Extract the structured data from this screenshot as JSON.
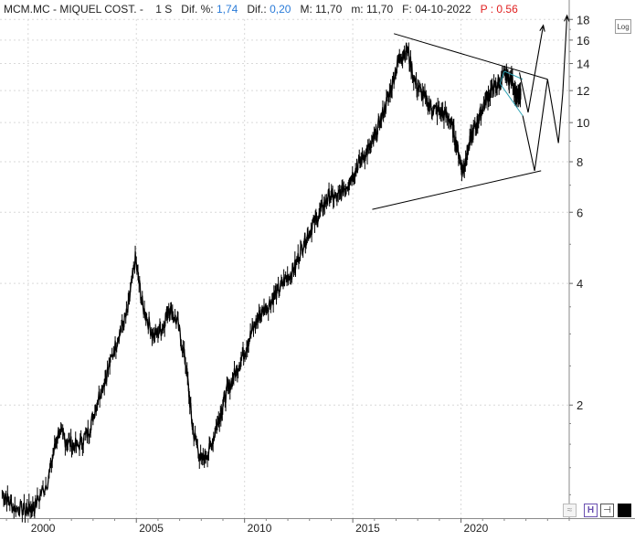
{
  "header": {
    "symbol": "MCM.MC - MIQUEL COST. -",
    "period": "1 S",
    "pct_label": "Dif. %:",
    "pct_value": "1,74",
    "diff_label": "Dif.:",
    "diff_value": "0,20",
    "max_label": "M:",
    "max_value": "11,70",
    "min_label": "m:",
    "min_value": "11,70",
    "date_label": "F:",
    "date_value": "04-10-2022",
    "per_label": "P :",
    "per_value": "0.56"
  },
  "controls": {
    "log_label": "Log"
  },
  "colors": {
    "price": "#000000",
    "grid": "#d9d9d9",
    "channel": "#2fa3b5",
    "value_blue": "#2a7bd8",
    "value_red": "#e02020"
  },
  "chart_data": {
    "type": "line",
    "y_scale": "log",
    "ylim": [
      1.05,
      18.5
    ],
    "xlim": [
      1998.7,
      2025.0
    ],
    "x_ticks": [
      2000,
      2005,
      2010,
      2015,
      2020
    ],
    "y_ticks": [
      2,
      4,
      6,
      8,
      10,
      12,
      14,
      16,
      18
    ],
    "grid": true,
    "series": [
      {
        "x": [
          1998.8,
          1999.3,
          1999.9,
          2000.3,
          2000.9,
          2001.4,
          2001.8,
          2002.3,
          2002.8,
          2003.2,
          2003.7,
          2004.2,
          2004.6,
          2004.95,
          2005.3,
          2005.8,
          2006.2,
          2006.5,
          2006.9,
          2007.3,
          2007.6,
          2008.0,
          2008.4,
          2008.8,
          2009.1,
          2009.5,
          2009.9,
          2010.3,
          2010.7,
          2011.1,
          2011.5,
          2011.9,
          2012.3,
          2012.7,
          2013.1,
          2013.5,
          2013.9,
          2014.3,
          2014.7,
          2015.1,
          2015.5,
          2015.9,
          2016.3,
          2016.7,
          2017.1,
          2017.5,
          2017.9,
          2018.3,
          2018.7,
          2019.1,
          2019.5,
          2019.8,
          2020.1,
          2020.3,
          2020.6,
          2020.9,
          2021.2,
          2021.5,
          2021.8,
          2022.1,
          2022.4,
          2022.6,
          2022.76
        ],
        "y": [
          1.22,
          1.12,
          1.1,
          1.12,
          1.3,
          1.72,
          1.62,
          1.58,
          1.72,
          2.05,
          2.45,
          3.0,
          3.4,
          4.6,
          3.5,
          2.95,
          3.1,
          3.5,
          3.2,
          2.5,
          1.75,
          1.45,
          1.55,
          1.85,
          2.1,
          2.35,
          2.65,
          3.0,
          3.35,
          3.55,
          3.8,
          4.1,
          4.35,
          5.0,
          5.5,
          6.0,
          6.6,
          6.5,
          7.0,
          7.6,
          8.3,
          8.8,
          10.2,
          11.8,
          14.3,
          15.2,
          12.5,
          11.5,
          10.8,
          10.6,
          10.2,
          8.8,
          7.6,
          8.5,
          9.6,
          10.5,
          11.6,
          12.2,
          12.6,
          13.1,
          12.6,
          11.5,
          11.7
        ]
      }
    ],
    "trendlines": [
      {
        "x": [
          2016.9,
          2024.0
        ],
        "y": [
          16.6,
          12.8
        ]
      },
      {
        "x": [
          2015.9,
          2023.7
        ],
        "y": [
          6.1,
          7.6
        ]
      }
    ],
    "channel": [
      {
        "x": [
          2022.0,
          2022.85
        ],
        "y": [
          13.4,
          12.8
        ]
      },
      {
        "x": [
          2021.8,
          2022.85
        ],
        "y": [
          12.5,
          10.4
        ]
      },
      {
        "x": [
          2022.0,
          2021.8
        ],
        "y": [
          13.4,
          12.5
        ]
      }
    ],
    "projections": [
      {
        "x": [
          2022.7,
          2023.1,
          2023.8
        ],
        "y": [
          13.3,
          10.6,
          17.4
        ]
      },
      {
        "x": [
          2022.85,
          2023.4,
          2024.0,
          2024.5,
          2024.7,
          2024.9
        ],
        "y": [
          10.4,
          7.6,
          12.8,
          8.9,
          11.8,
          18.4
        ]
      }
    ]
  }
}
